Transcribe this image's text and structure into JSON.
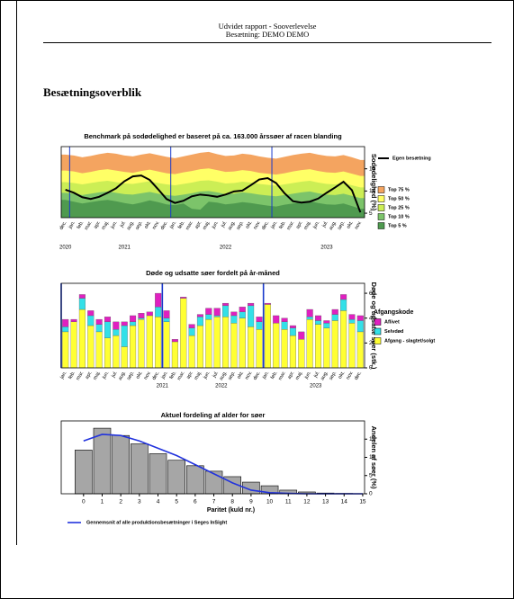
{
  "header": {
    "title": "Udvidet rapport - Sooverlevelse",
    "subtitle": "Besætning: DEMO DEMO"
  },
  "section_title": "Besætningsoverblik",
  "chart_data": [
    {
      "type": "line",
      "title": "Benchmark på sodødelighed er baseret på ca. 163.000 årssøer af racen blanding",
      "y_label": "Sodødelighed (%)",
      "categories": [
        "dec.",
        "jan.",
        "feb.",
        "mar.",
        "apr.",
        "maj.",
        "jun.",
        "jul.",
        "aug.",
        "sep.",
        "okt.",
        "nov.",
        "dec.",
        "jan.",
        "feb.",
        "mar.",
        "apr.",
        "maj.",
        "jun.",
        "jul.",
        "aug.",
        "sep.",
        "okt.",
        "nov.",
        "dec.",
        "jan.",
        "feb.",
        "mar.",
        "apr.",
        "maj.",
        "jun.",
        "jul.",
        "aug.",
        "sep.",
        "okt.",
        "nov."
      ],
      "years": [
        "2020",
        "2021",
        "2022",
        "2023"
      ],
      "ylim": [
        4,
        20
      ],
      "yticks": [
        5,
        10,
        15
      ],
      "series": [
        {
          "name": "Egen besætning",
          "color": "#000000",
          "values": [
            10.3,
            9.6,
            8.6,
            8.2,
            8.7,
            9.6,
            10.6,
            12.2,
            13.3,
            13.5,
            12.5,
            10.4,
            8.2,
            7.3,
            7.8,
            8.8,
            9.2,
            9.0,
            8.7,
            9.2,
            9.9,
            10.1,
            11.3,
            12.6,
            12.9,
            11.8,
            9.5,
            7.7,
            7.4,
            7.6,
            8.3,
            9.6,
            10.8,
            12.1,
            10.2,
            5.2
          ]
        }
      ],
      "bands": [
        {
          "name": "Top 75 %",
          "color": "#f4a460",
          "values": [
            18.2,
            18.0,
            17.6,
            17.9,
            18.3,
            18.6,
            18.4,
            18.0,
            17.8,
            18.2,
            18.5,
            18.1,
            17.7,
            17.4,
            17.8,
            18.2,
            18.6,
            18.8,
            18.3,
            17.9,
            18.0,
            18.4,
            18.2,
            17.8,
            17.5,
            17.3,
            17.7,
            18.1,
            18.4,
            18.6,
            18.2,
            17.9,
            17.8,
            18.1,
            17.6,
            17.0
          ]
        },
        {
          "name": "Top 50 %",
          "color": "#ffff66",
          "values": [
            14.6,
            14.4,
            14.0,
            14.3,
            14.7,
            14.9,
            14.6,
            14.3,
            14.1,
            14.5,
            14.8,
            14.4,
            14.0,
            13.8,
            14.2,
            14.5,
            14.9,
            15.1,
            14.7,
            14.3,
            14.4,
            14.7,
            14.5,
            14.1,
            13.9,
            13.7,
            14.0,
            14.4,
            14.7,
            14.9,
            14.5,
            14.2,
            14.1,
            14.4,
            13.9,
            13.4
          ]
        },
        {
          "name": "Top 25 %",
          "color": "#ccee55",
          "values": [
            12.0,
            11.8,
            11.5,
            11.8,
            12.1,
            12.3,
            12.0,
            11.7,
            11.6,
            11.9,
            12.2,
            11.8,
            11.5,
            11.3,
            11.6,
            11.9,
            12.3,
            12.4,
            12.1,
            11.7,
            11.8,
            12.1,
            11.9,
            11.6,
            11.4,
            11.2,
            11.5,
            11.8,
            12.1,
            12.3,
            11.9,
            11.6,
            11.5,
            11.8,
            11.3,
            10.8
          ]
        },
        {
          "name": "Top 10 %",
          "color": "#7cc46a",
          "values": [
            9.6,
            9.4,
            9.1,
            9.4,
            9.7,
            9.9,
            9.6,
            9.3,
            9.2,
            9.5,
            9.8,
            9.4,
            9.1,
            8.9,
            9.2,
            9.5,
            9.9,
            10.0,
            9.7,
            9.3,
            9.4,
            9.7,
            9.5,
            9.2,
            9.0,
            8.8,
            9.1,
            9.4,
            9.7,
            9.9,
            9.5,
            9.2,
            9.1,
            9.4,
            8.9,
            8.4
          ]
        },
        {
          "name": "Top 5 %",
          "color": "#4f9a4f",
          "values": [
            8.0,
            7.6,
            7.2,
            7.5,
            7.8,
            8.0,
            7.7,
            7.3,
            7.0,
            7.4,
            7.9,
            7.5,
            7.0,
            6.8,
            7.2,
            6.0,
            5.8,
            7.6,
            7.4,
            7.0,
            7.2,
            7.5,
            7.3,
            7.0,
            6.7,
            6.5,
            6.9,
            7.2,
            7.5,
            7.7,
            7.3,
            7.0,
            6.9,
            7.2,
            6.6,
            6.0
          ]
        }
      ]
    },
    {
      "type": "bar",
      "title": "Døde og udsatte søer fordelt på år-måned",
      "y_label": "Døde og udsatte søer (stk.)",
      "legend_title": "Afgangskode",
      "categories": [
        "jan.",
        "feb.",
        "mar.",
        "apr.",
        "maj.",
        "jun.",
        "jul.",
        "aug.",
        "sep.",
        "okt.",
        "nov.",
        "dec.",
        "jan.",
        "feb.",
        "mar.",
        "apr.",
        "maj.",
        "jun.",
        "jul.",
        "aug.",
        "sep.",
        "okt.",
        "nov.",
        "dec.",
        "jan.",
        "feb.",
        "mar.",
        "apr.",
        "maj.",
        "jun.",
        "jul.",
        "aug.",
        "sep.",
        "okt.",
        "nov.",
        "dec."
      ],
      "years": [
        "2021",
        "2022",
        "2023"
      ],
      "ylim": [
        0,
        68
      ],
      "yticks": [
        0,
        20,
        40,
        60
      ],
      "series": [
        {
          "name": "Aflivet",
          "color": "#e020c0",
          "values": [
            6,
            2,
            3,
            4,
            4,
            4,
            6,
            3,
            5,
            4,
            3,
            11,
            6,
            2,
            1,
            3,
            2,
            5,
            6,
            2,
            3,
            4,
            2,
            4,
            1,
            6,
            3,
            2,
            6,
            6,
            4,
            2,
            4,
            4,
            4,
            4
          ]
        },
        {
          "name": "Selvdød",
          "color": "#33e0e8",
          "values": [
            4,
            0,
            9,
            8,
            6,
            13,
            5,
            17,
            3,
            1,
            0,
            8,
            3,
            0,
            0,
            6,
            7,
            4,
            1,
            9,
            6,
            5,
            17,
            6,
            0,
            0,
            6,
            6,
            0,
            2,
            3,
            4,
            5,
            9,
            3,
            9
          ]
        },
        {
          "name": "Afgang - slagtet/solgt",
          "color": "#ffff33",
          "values": [
            29,
            37,
            47,
            34,
            29,
            24,
            26,
            17,
            34,
            39,
            42,
            41,
            37,
            21,
            56,
            26,
            34,
            39,
            41,
            41,
            36,
            40,
            33,
            31,
            51,
            36,
            31,
            26,
            23,
            39,
            35,
            32,
            38,
            46,
            36,
            29
          ]
        }
      ]
    },
    {
      "type": "bar",
      "title": "Aktuel fordeling af alder for søer",
      "x_label": "Paritet (kuld nr.)",
      "y_label": "Andelen af søer (%)",
      "x": [
        0,
        1,
        2,
        3,
        4,
        5,
        6,
        7,
        8,
        9,
        10,
        11,
        12,
        13,
        14
      ],
      "values": [
        12,
        18,
        16,
        13.7,
        11,
        9.2,
        7.7,
        6.2,
        4.7,
        3.2,
        2.2,
        1,
        0.5,
        0.2,
        0.1
      ],
      "color": "#a6a6a6",
      "xlim": [
        -1.2,
        15.1
      ],
      "xticks": [
        0,
        1,
        2,
        3,
        4,
        5,
        6,
        7,
        8,
        9,
        10,
        11,
        12,
        13,
        14,
        15
      ],
      "ylim": [
        0,
        20
      ],
      "yticks": [
        0,
        5,
        10,
        15
      ],
      "series": [
        {
          "name": "Gennemsnit af alle produktionsbesætninger i Seges InSight",
          "color": "#2233dd",
          "x": [
            0,
            1,
            2,
            3,
            4,
            5,
            6,
            7,
            8,
            9,
            10,
            11,
            12,
            13,
            14,
            15
          ],
          "values": [
            14.5,
            16.3,
            16,
            14.5,
            12.5,
            10.5,
            8,
            5.5,
            3,
            1,
            0.3,
            0.1,
            0,
            0,
            0,
            0
          ]
        }
      ]
    }
  ]
}
